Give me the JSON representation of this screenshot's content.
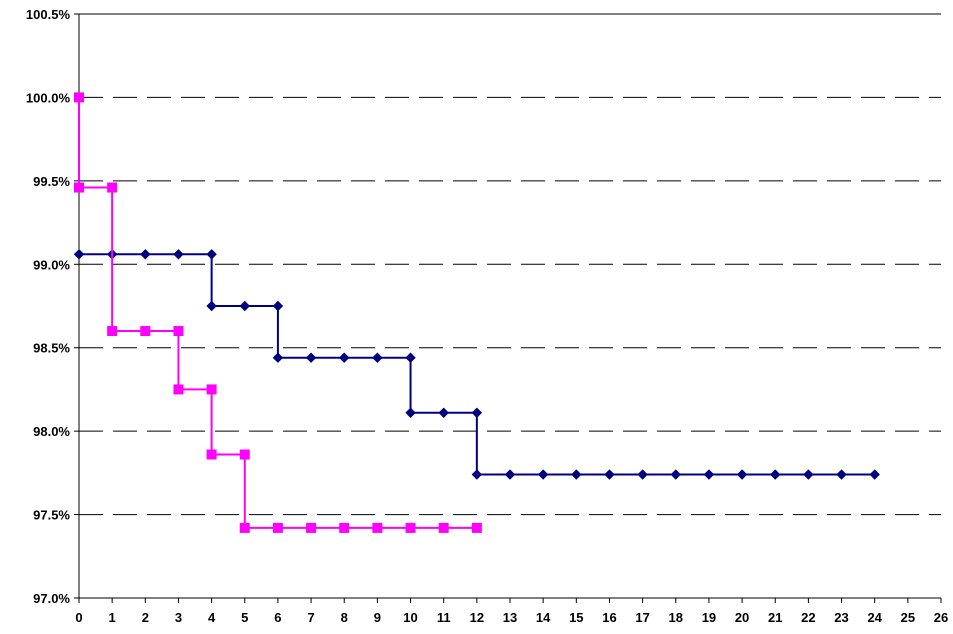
{
  "chart_data": {
    "type": "line",
    "title": "",
    "xlabel": "",
    "ylabel": "",
    "xlim": [
      0,
      26
    ],
    "ylim": [
      97.0,
      100.5
    ],
    "x_ticks": [
      "0",
      "1",
      "2",
      "3",
      "4",
      "5",
      "6",
      "7",
      "8",
      "9",
      "10",
      "11",
      "12",
      "13",
      "14",
      "15",
      "16",
      "17",
      "18",
      "19",
      "20",
      "21",
      "22",
      "23",
      "24",
      "25",
      "26"
    ],
    "y_ticks": [
      "97.0%",
      "97.5%",
      "98.0%",
      "98.5%",
      "99.0%",
      "99.5%",
      "100.0%",
      "100.5%"
    ],
    "y_tick_values": [
      97.0,
      97.5,
      98.0,
      98.5,
      99.0,
      99.5,
      100.0,
      100.5
    ],
    "grid": "horizontal-dashed",
    "step": true,
    "series": [
      {
        "color": "#000080",
        "marker": "diamond",
        "points": [
          [
            0,
            99.06
          ],
          [
            1,
            99.06
          ],
          [
            2,
            99.06
          ],
          [
            3,
            99.06
          ],
          [
            4,
            99.06
          ],
          [
            4,
            98.75
          ],
          [
            5,
            98.75
          ],
          [
            6,
            98.75
          ],
          [
            6,
            98.44
          ],
          [
            7,
            98.44
          ],
          [
            8,
            98.44
          ],
          [
            9,
            98.44
          ],
          [
            10,
            98.44
          ],
          [
            10,
            98.11
          ],
          [
            11,
            98.11
          ],
          [
            12,
            98.11
          ],
          [
            12,
            97.74
          ],
          [
            13,
            97.74
          ],
          [
            14,
            97.74
          ],
          [
            15,
            97.74
          ],
          [
            16,
            97.74
          ],
          [
            17,
            97.74
          ],
          [
            18,
            97.74
          ],
          [
            19,
            97.74
          ],
          [
            20,
            97.74
          ],
          [
            21,
            97.74
          ],
          [
            22,
            97.74
          ],
          [
            23,
            97.74
          ],
          [
            24,
            97.74
          ]
        ]
      },
      {
        "color": "#FF00FF",
        "marker": "square",
        "points": [
          [
            0,
            100.0
          ],
          [
            0,
            99.46
          ],
          [
            1,
            99.46
          ],
          [
            1,
            98.6
          ],
          [
            2,
            98.6
          ],
          [
            3,
            98.6
          ],
          [
            3,
            98.25
          ],
          [
            4,
            98.25
          ],
          [
            4,
            97.86
          ],
          [
            5,
            97.86
          ],
          [
            5,
            97.42
          ],
          [
            6,
            97.42
          ],
          [
            7,
            97.42
          ],
          [
            8,
            97.42
          ],
          [
            9,
            97.42
          ],
          [
            10,
            97.42
          ],
          [
            11,
            97.42
          ],
          [
            12,
            97.42
          ]
        ]
      }
    ]
  }
}
